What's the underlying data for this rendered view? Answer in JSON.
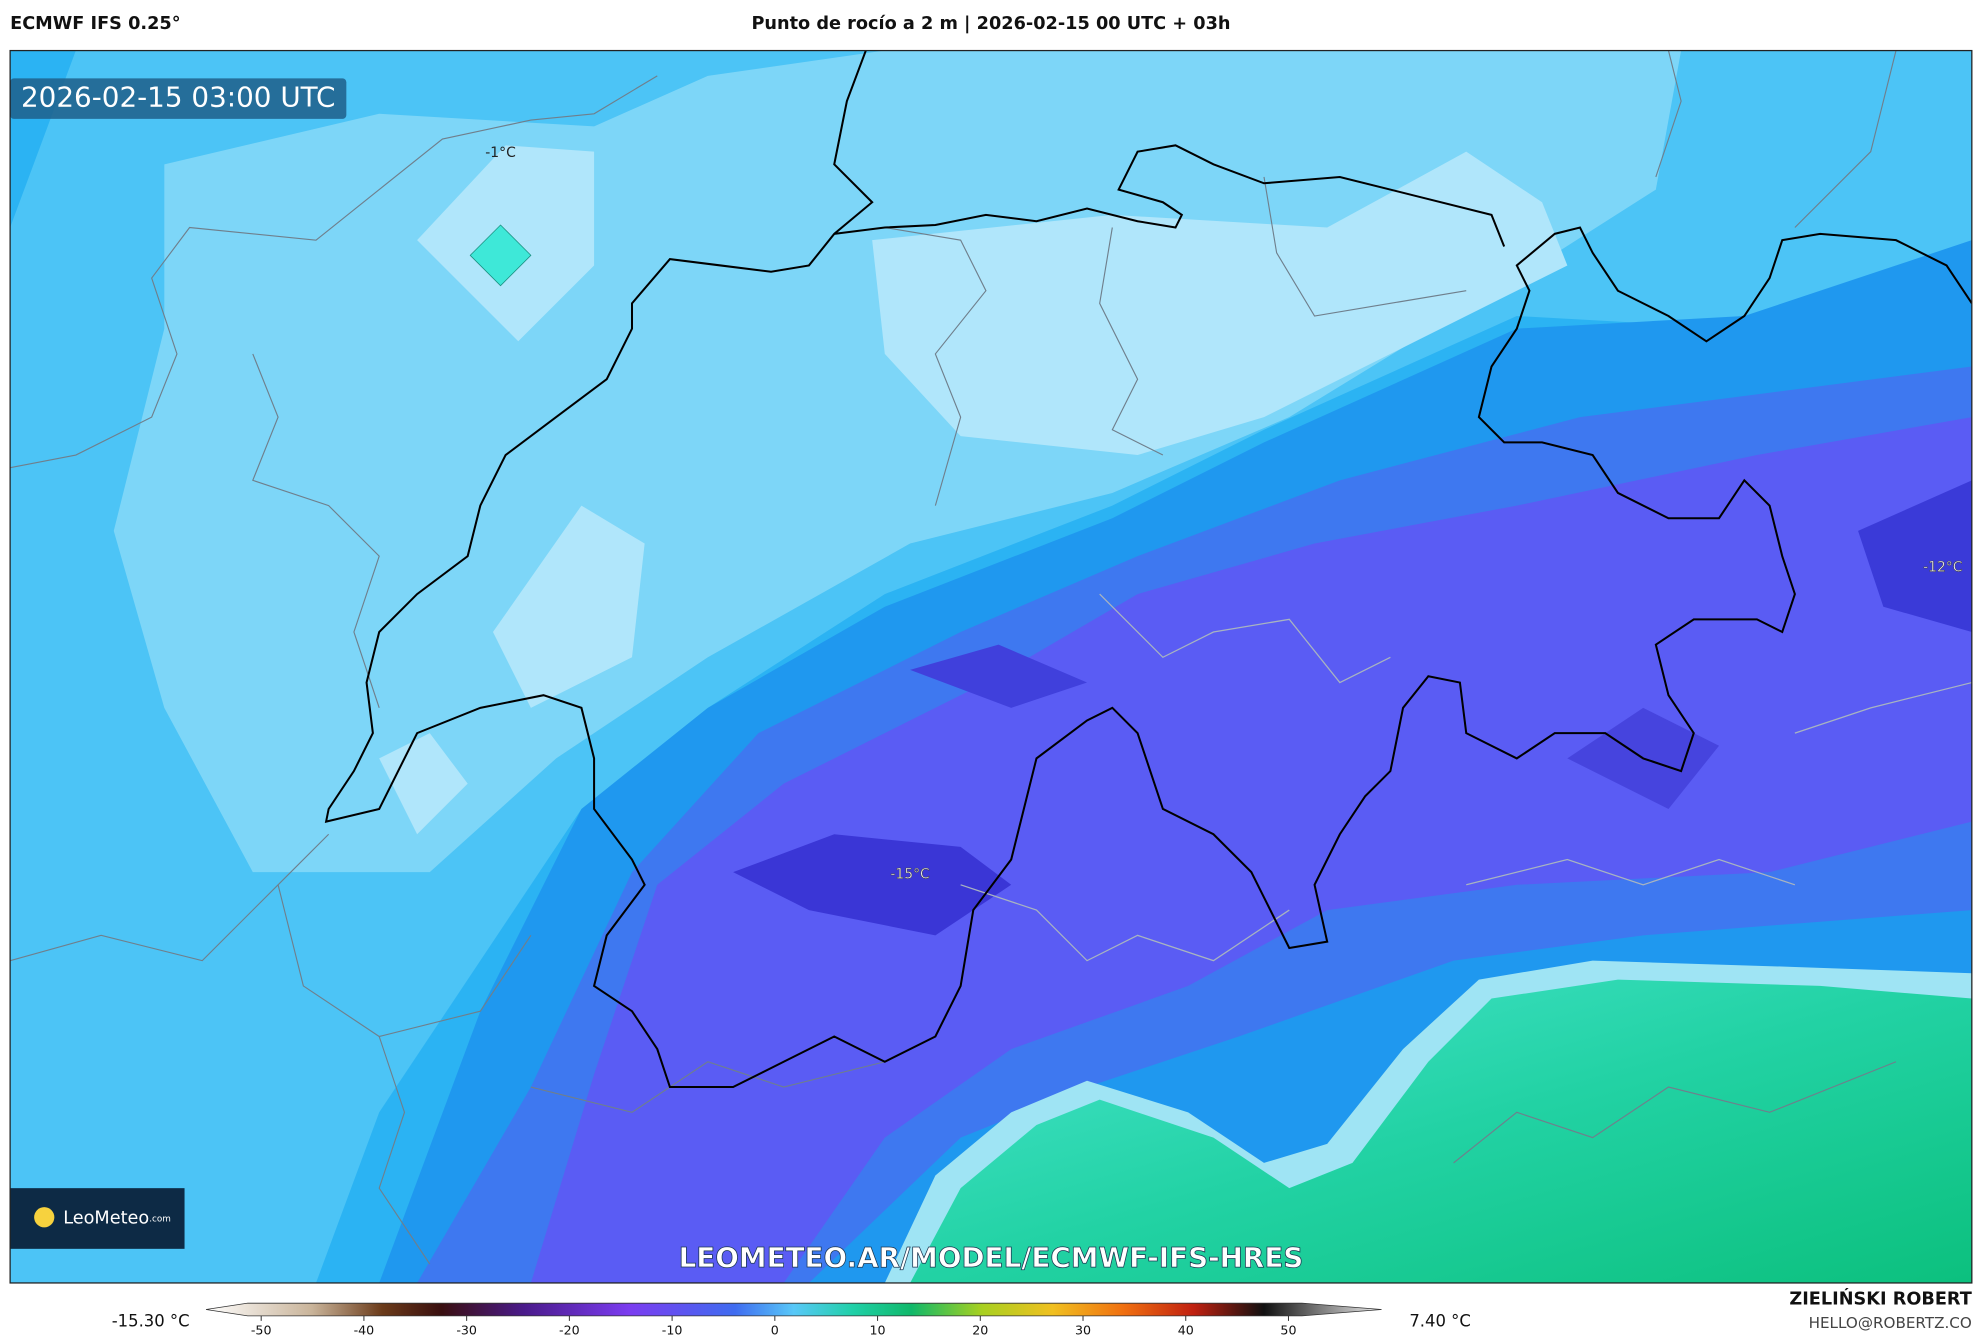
{
  "header": {
    "model": "ECMWF IFS 0.25°",
    "title": "Punto de rocío a 2 m | 2026-02-15 00 UTC + 03h"
  },
  "map": {
    "timestamp": "2026-02-15 03:00 UTC",
    "labels": [
      "-1°C",
      "-12°C",
      "-15°C"
    ],
    "logo": {
      "name": "LeoMeteo",
      "suffix": ".com"
    },
    "watermark": "LEOMETEO.AR/MODEL/ECMWF-IFS-HRES"
  },
  "colorbar": {
    "min_label": "-15.30 °C",
    "max_label": "7.40 °C",
    "range": [
      -55,
      55
    ],
    "ticks": [
      -50,
      -40,
      -30,
      -20,
      -10,
      0,
      10,
      20,
      30,
      40,
      50
    ]
  },
  "footer": {
    "author": "ZIELIŃSKI ROBERT",
    "email": "HELLO@ROBERTZ.CO"
  }
}
